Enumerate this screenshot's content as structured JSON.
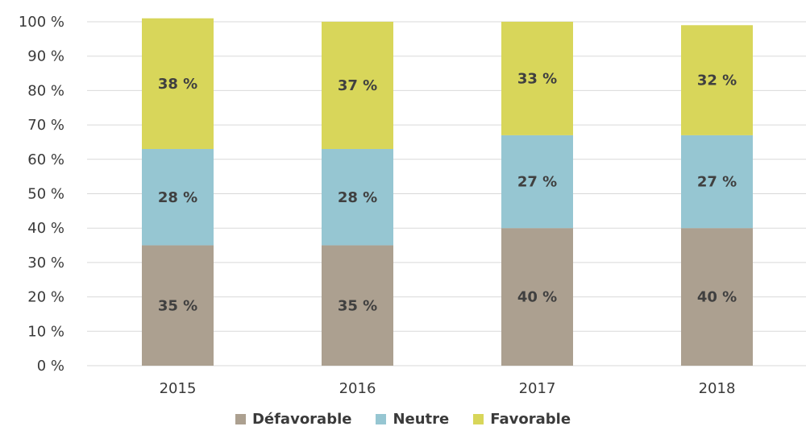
{
  "chart_data": {
    "type": "bar",
    "stacked": true,
    "title": "",
    "xlabel": "",
    "ylabel": "",
    "categories": [
      "2015",
      "2016",
      "2017",
      "2018"
    ],
    "ylim": [
      0,
      100
    ],
    "yticks": [
      0,
      10,
      20,
      30,
      40,
      50,
      60,
      70,
      80,
      90,
      100
    ],
    "ytick_labels": [
      "0 %",
      "10 %",
      "20 %",
      "30 %",
      "40 %",
      "50 %",
      "60 %",
      "70 %",
      "80 %",
      "90 %",
      "100 %"
    ],
    "grid": true,
    "legend_position": "bottom",
    "series": [
      {
        "name": "Défavorable",
        "color": "#aca090",
        "values": [
          35,
          35,
          40,
          40
        ],
        "labels": [
          "35 %",
          "35 %",
          "40 %",
          "40 %"
        ]
      },
      {
        "name": "Neutre",
        "color": "#96c6d2",
        "values": [
          28,
          28,
          27,
          27
        ],
        "labels": [
          "28 %",
          "28 %",
          "27 %",
          "27 %"
        ]
      },
      {
        "name": "Favorable",
        "color": "#d8d65a",
        "values": [
          38,
          37,
          33,
          32
        ],
        "labels": [
          "38 %",
          "37 %",
          "33 %",
          "32 %"
        ]
      }
    ]
  }
}
